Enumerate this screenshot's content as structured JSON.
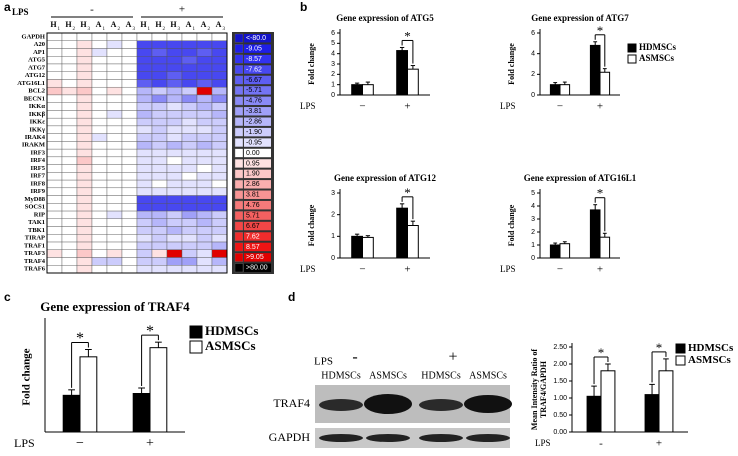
{
  "panels": [
    "a",
    "b",
    "c",
    "d"
  ],
  "chart_data": [
    {
      "type": "heatmap",
      "x_label": "LPS",
      "groups": [
        "-",
        "+"
      ],
      "columns": [
        {
          "name": "H",
          "sub": "1"
        },
        {
          "name": "H",
          "sub": "2"
        },
        {
          "name": "H",
          "sub": "3"
        },
        {
          "name": "A",
          "sub": "1"
        },
        {
          "name": "A",
          "sub": "2"
        },
        {
          "name": "A",
          "sub": "3"
        },
        {
          "name": "H",
          "sub": "1"
        },
        {
          "name": "H",
          "sub": "2"
        },
        {
          "name": "H",
          "sub": "3"
        },
        {
          "name": "A",
          "sub": "1"
        },
        {
          "name": "A",
          "sub": "2"
        },
        {
          "name": "A",
          "sub": "3"
        }
      ],
      "rows": [
        "GAPDH",
        "A20",
        "AP1",
        "ATG5",
        "ATG7",
        "ATG12",
        "ATG16L1",
        "BCL2",
        "BECN1",
        "IKKα",
        "IKKβ",
        "IKKε",
        "IKKγ",
        "IRAK4",
        "IRAKM",
        "IRF3",
        "IRF4",
        "IRF5",
        "IRF7",
        "IRF8",
        "IRF9",
        "MyD88",
        "SOCS1",
        "RIP",
        "TAK1",
        "TBK1",
        "TIRAP",
        "TRAF1",
        "TRAF3",
        "TRAF4",
        "TRAF6"
      ],
      "values": [
        [
          0,
          0,
          0,
          0,
          0,
          0,
          0,
          0,
          0,
          0,
          0,
          0
        ],
        [
          0,
          0,
          1,
          0,
          -1,
          0,
          -8,
          -8,
          -8,
          -8,
          -8,
          -8
        ],
        [
          0,
          0,
          1,
          -1,
          0,
          0,
          -8,
          -7,
          -8,
          -8,
          -7,
          -8
        ],
        [
          0,
          0,
          1,
          0,
          0,
          0,
          -8,
          -8,
          -8,
          -7,
          -8,
          -8
        ],
        [
          0,
          0,
          1,
          0,
          0,
          0,
          -8,
          -8,
          -8,
          -8,
          -8,
          -8
        ],
        [
          0,
          0,
          1,
          0,
          0,
          0,
          -8,
          -8,
          -7,
          -8,
          -8,
          -8
        ],
        [
          1,
          0,
          1,
          0,
          0,
          0,
          -7,
          -8,
          -7,
          -8,
          -7,
          -8
        ],
        [
          2,
          1,
          2,
          0,
          1,
          0,
          -3,
          -2,
          -3,
          -2,
          9,
          -3
        ],
        [
          0,
          0,
          1,
          0,
          0,
          0,
          -3,
          -5,
          -3,
          -5,
          -3,
          -5
        ],
        [
          0,
          0,
          1,
          0,
          0,
          0,
          -2,
          -2,
          -1,
          -2,
          -3,
          -2
        ],
        [
          0,
          0,
          1,
          0,
          -1,
          0,
          -3,
          -2,
          -2,
          -2,
          -2,
          -3
        ],
        [
          0,
          0,
          1,
          0,
          0,
          0,
          -2,
          -2,
          -2,
          -1,
          -2,
          -2
        ],
        [
          0,
          0,
          1,
          0,
          0,
          0,
          -1,
          -2,
          -1,
          -1,
          -1,
          -2
        ],
        [
          0,
          0,
          1,
          -1,
          0,
          0,
          -2,
          -2,
          -1,
          -2,
          -2,
          -2
        ],
        [
          0,
          0,
          1,
          0,
          0,
          0,
          -3,
          -2,
          -3,
          -2,
          -3,
          -2
        ],
        [
          0,
          0,
          1,
          0,
          0,
          0,
          -1,
          -1,
          -1,
          -1,
          -1,
          -1
        ],
        [
          0,
          0,
          2,
          0,
          0,
          0,
          -1,
          -1,
          0,
          -1,
          -1,
          -1
        ],
        [
          0,
          0,
          1,
          0,
          0,
          0,
          -1,
          -1,
          -1,
          -1,
          0,
          -1
        ],
        [
          0,
          0,
          1,
          0,
          0,
          0,
          -1,
          -1,
          -1,
          0,
          -1,
          -1
        ],
        [
          0,
          0,
          1,
          0,
          0,
          0,
          -1,
          0,
          -1,
          -1,
          -1,
          0
        ],
        [
          0,
          0,
          1,
          0,
          0,
          0,
          -1,
          -1,
          -1,
          -1,
          -1,
          -1
        ],
        [
          0,
          0,
          1,
          0,
          0,
          0,
          -8,
          -8,
          -8,
          -8,
          -8,
          -8
        ],
        [
          0,
          0,
          1,
          0,
          0,
          0,
          -8,
          -8,
          -8,
          -8,
          -8,
          -8
        ],
        [
          0,
          0,
          1,
          0,
          -1,
          0,
          -3,
          -3,
          -2,
          -4,
          -3,
          -2
        ],
        [
          0,
          0,
          1,
          0,
          0,
          0,
          -2,
          -3,
          -2,
          -2,
          -3,
          -2
        ],
        [
          0,
          0,
          1,
          0,
          0,
          0,
          -2,
          -2,
          -3,
          -2,
          -2,
          -2
        ],
        [
          0,
          0,
          1,
          0,
          0,
          0,
          -1,
          -2,
          -1,
          -1,
          -2,
          -1
        ],
        [
          0,
          0,
          1,
          0,
          0,
          0,
          -2,
          -2,
          -2,
          -2,
          -2,
          -3
        ],
        [
          1,
          0,
          2,
          0,
          1,
          0,
          -2,
          1,
          9,
          -2,
          -1,
          9
        ],
        [
          0,
          0,
          1,
          -2,
          -2,
          0,
          -2,
          -2,
          -4,
          -4,
          -1,
          -3
        ],
        [
          0,
          0,
          1,
          0,
          0,
          0,
          -1,
          -1,
          -1,
          -1,
          -1,
          -1
        ]
      ],
      "scale": [
        {
          "value": -80,
          "label": "<-80.0",
          "color": "#1414c8"
        },
        {
          "value": -9.05,
          "label": "-9.05",
          "color": "#1e1ee6"
        },
        {
          "value": -8.57,
          "label": "-8.57",
          "color": "#3232f0"
        },
        {
          "value": -7.62,
          "label": "-7.62",
          "color": "#4848f0"
        },
        {
          "value": -6.67,
          "label": "-6.67",
          "color": "#5e5ef2"
        },
        {
          "value": -5.71,
          "label": "-5.71",
          "color": "#7474f4"
        },
        {
          "value": -4.76,
          "label": "-4.76",
          "color": "#8a8af6"
        },
        {
          "value": -3.81,
          "label": "-3.81",
          "color": "#a0a0f8"
        },
        {
          "value": -2.86,
          "label": "-2.86",
          "color": "#b6b6fa"
        },
        {
          "value": -1.9,
          "label": "-1.90",
          "color": "#ccccfc"
        },
        {
          "value": -0.95,
          "label": "-0.95",
          "color": "#e2e2fe"
        },
        {
          "value": 0,
          "label": "0.00",
          "color": "#ffffff"
        },
        {
          "value": 0.95,
          "label": "0.95",
          "color": "#fee2e2"
        },
        {
          "value": 1.9,
          "label": "1.90",
          "color": "#fcc8c8"
        },
        {
          "value": 2.86,
          "label": "2.86",
          "color": "#faaeae"
        },
        {
          "value": 3.81,
          "label": "3.81",
          "color": "#f89494"
        },
        {
          "value": 4.76,
          "label": "4.76",
          "color": "#f67a7a"
        },
        {
          "value": 5.71,
          "label": "5.71",
          "color": "#f46060"
        },
        {
          "value": 6.67,
          "label": "6.67",
          "color": "#f24646"
        },
        {
          "value": 7.62,
          "label": "7.62",
          "color": "#f02c2c"
        },
        {
          "value": 8.57,
          "label": "8.57",
          "color": "#ee1414"
        },
        {
          "value": 9.05,
          "label": ">9.05",
          "color": "#e00000"
        },
        {
          "value": 80,
          "label": ">80.00",
          "color": "#000000"
        }
      ]
    },
    {
      "type": "bar",
      "title": "Gene expression of ATG5",
      "y_label": "Fold change",
      "x_label": "LPS",
      "categories": [
        "−",
        "+"
      ],
      "series": [
        {
          "name": "HDMSCs",
          "color": "#000000",
          "values": [
            1,
            4.3
          ],
          "errors": [
            0.15,
            0.3
          ]
        },
        {
          "name": "ASMSCs",
          "color": "#ffffff",
          "values": [
            1,
            2.5
          ],
          "errors": [
            0.25,
            0.35
          ]
        }
      ],
      "significance": [
        null,
        "*"
      ],
      "ylim": [
        0,
        6
      ],
      "yticks": [
        0,
        1,
        2,
        3,
        4,
        5,
        6
      ]
    },
    {
      "type": "bar",
      "title": "Gene expression of ATG7",
      "y_label": "Fold change",
      "x_label": "LPS",
      "categories": [
        "−",
        "+"
      ],
      "series": [
        {
          "name": "HDMSCs",
          "color": "#000000",
          "values": [
            1,
            4.8
          ],
          "errors": [
            0.2,
            0.35
          ]
        },
        {
          "name": "ASMSCs",
          "color": "#ffffff",
          "values": [
            1,
            2.2
          ],
          "errors": [
            0.25,
            0.35
          ]
        }
      ],
      "significance": [
        null,
        "*"
      ],
      "ylim": [
        0,
        6
      ],
      "yticks": [
        0,
        2,
        4,
        6
      ],
      "legend": true
    },
    {
      "type": "bar",
      "title": "Gene expression of ATG12",
      "y_label": "Fold change",
      "x_label": "LPS",
      "categories": [
        "−",
        "+"
      ],
      "series": [
        {
          "name": "HDMSCs",
          "color": "#000000",
          "values": [
            1,
            2.3
          ],
          "errors": [
            0.1,
            0.2
          ]
        },
        {
          "name": "ASMSCs",
          "color": "#ffffff",
          "values": [
            0.95,
            1.5
          ],
          "errors": [
            0.08,
            0.2
          ]
        }
      ],
      "significance": [
        null,
        "*"
      ],
      "ylim": [
        0,
        3
      ],
      "yticks": [
        0,
        1,
        2,
        3
      ]
    },
    {
      "type": "bar",
      "title": "Gene expression of ATG16L1",
      "y_label": "Fold change",
      "x_label": "LPS",
      "categories": [
        "−",
        "+"
      ],
      "series": [
        {
          "name": "HDMSCs",
          "color": "#000000",
          "values": [
            1,
            3.7
          ],
          "errors": [
            0.15,
            0.4
          ]
        },
        {
          "name": "ASMSCs",
          "color": "#ffffff",
          "values": [
            1.1,
            1.6
          ],
          "errors": [
            0.15,
            0.3
          ]
        }
      ],
      "significance": [
        null,
        "*"
      ],
      "ylim": [
        0,
        5
      ],
      "yticks": [
        0,
        1,
        2,
        3,
        4,
        5
      ]
    },
    {
      "type": "bar",
      "title": "Gene expression of TRAF4",
      "y_label": "Fold change",
      "x_label": "LPS",
      "categories": [
        "−",
        "+"
      ],
      "series": [
        {
          "name": "HDMSCs",
          "color": "#000000",
          "values": [
            1,
            1.05
          ],
          "errors": [
            0.15,
            0.15
          ]
        },
        {
          "name": "ASMSCs",
          "color": "#ffffff",
          "values": [
            2.05,
            2.3
          ],
          "errors": [
            0.2,
            0.15
          ]
        }
      ],
      "significance": [
        "*",
        "*"
      ],
      "ylim": [
        0,
        3
      ],
      "legend": true
    },
    {
      "type": "bar",
      "y_label": [
        "Mean Intensity Ratio of",
        "TRAF4/GAPDH"
      ],
      "x_label": "LPS",
      "categories": [
        "-",
        "+"
      ],
      "series": [
        {
          "name": "HDMSCs",
          "color": "#000000",
          "values": [
            1.05,
            1.1
          ],
          "errors": [
            0.3,
            0.3
          ]
        },
        {
          "name": "ASMSCs",
          "color": "#ffffff",
          "values": [
            1.8,
            1.8
          ],
          "errors": [
            0.2,
            0.35
          ]
        }
      ],
      "significance": [
        "*",
        "*"
      ],
      "ylim": [
        0,
        2.5
      ],
      "yticks": [
        {
          "value": 0,
          "label": "0.00"
        },
        {
          "value": 0.5,
          "label": "0.50"
        },
        {
          "value": 1,
          "label": "1.00"
        },
        {
          "value": 1.5,
          "label": "1.50"
        },
        {
          "value": 2,
          "label": "2.00"
        },
        {
          "value": 2.5,
          "label": "2.50"
        }
      ],
      "legend": true
    }
  ],
  "blot": {
    "x_label": "LPS",
    "groups": [
      "-",
      "+"
    ],
    "lanes": [
      "HDMSCs",
      "ASMSCs",
      "HDMSCs",
      "ASMSCs"
    ],
    "rows": [
      "TRAF4",
      "GAPDH"
    ]
  }
}
